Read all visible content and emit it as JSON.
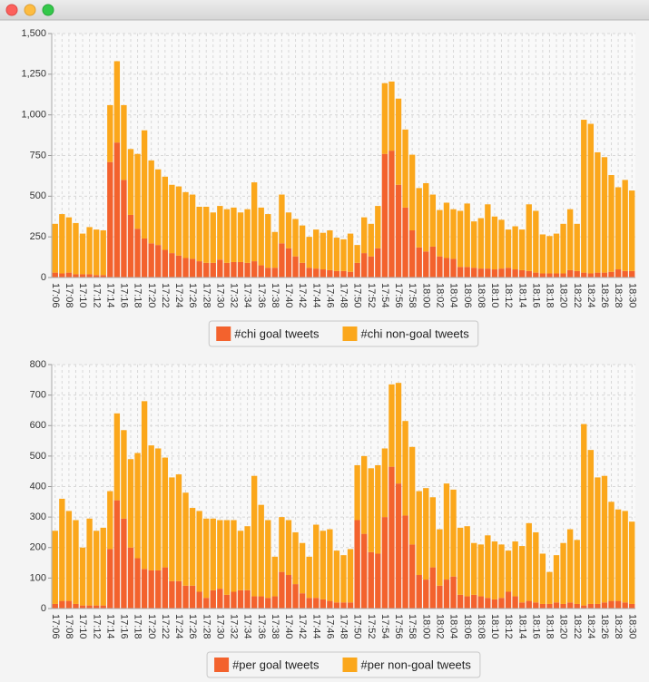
{
  "chart_data": [
    {
      "type": "stacked-bar",
      "categories": [
        "17:06",
        null,
        "17:08",
        null,
        "17:10",
        null,
        "17:12",
        null,
        "17:14",
        null,
        "17:16",
        null,
        "17:18",
        null,
        "17:20",
        null,
        "17:22",
        null,
        "17:24",
        null,
        "17:26",
        null,
        "17:28",
        null,
        "17:30",
        null,
        "17:32",
        null,
        "17:34",
        null,
        "17:36",
        null,
        "17:38",
        null,
        "17:40",
        null,
        "17:42",
        null,
        "17:44",
        null,
        "17:46",
        null,
        "17:48",
        null,
        "17:50",
        null,
        "17:52",
        null,
        "17:54",
        null,
        "17:56",
        null,
        "17:58",
        null,
        "18:00",
        null,
        "18:02",
        null,
        "18:04",
        null,
        "18:06",
        null,
        "18:08",
        null,
        "18:10",
        null,
        "18:12",
        null,
        "18:14",
        null,
        "18:16",
        null,
        "18:18",
        null,
        "18:20",
        null,
        "18:22",
        null,
        "18:24",
        null,
        "18:26",
        null,
        "18:28",
        null,
        "18:30"
      ],
      "series": [
        {
          "name": "#chi goal tweets",
          "color": "#f3622d",
          "values": [
            30,
            25,
            30,
            20,
            20,
            20,
            15,
            15,
            710,
            830,
            600,
            385,
            300,
            240,
            210,
            200,
            170,
            150,
            135,
            120,
            115,
            100,
            90,
            90,
            110,
            90,
            95,
            95,
            90,
            100,
            75,
            60,
            60,
            210,
            180,
            130,
            90,
            60,
            55,
            50,
            45,
            40,
            40,
            35,
            90,
            150,
            130,
            180,
            760,
            780,
            570,
            430,
            290,
            185,
            160,
            190,
            130,
            120,
            115,
            65,
            65,
            60,
            55,
            55,
            50,
            55,
            60,
            50,
            45,
            40,
            30,
            25,
            25,
            25,
            25,
            45,
            40,
            30,
            25,
            30,
            30,
            35,
            50,
            40,
            40
          ]
        },
        {
          "name": "#chi non-goal tweets",
          "color": "#fba71b",
          "values": [
            300,
            365,
            340,
            315,
            250,
            290,
            280,
            275,
            350,
            500,
            460,
            405,
            460,
            665,
            510,
            465,
            450,
            420,
            425,
            405,
            395,
            335,
            345,
            310,
            330,
            330,
            335,
            305,
            330,
            485,
            355,
            330,
            220,
            300,
            220,
            230,
            230,
            190,
            240,
            225,
            245,
            205,
            195,
            235,
            110,
            220,
            200,
            260,
            435,
            425,
            530,
            480,
            465,
            365,
            420,
            320,
            285,
            340,
            305,
            345,
            390,
            285,
            310,
            395,
            325,
            300,
            235,
            265,
            250,
            410,
            380,
            240,
            230,
            245,
            305,
            375,
            290,
            940,
            920,
            740,
            710,
            595,
            505,
            560,
            495
          ]
        }
      ],
      "ylim": [
        0,
        1500
      ],
      "yticks": [
        0,
        250,
        500,
        750,
        {
          "value": 1000,
          "label": "1,000"
        },
        {
          "value": 1250,
          "label": "1,250"
        },
        {
          "value": 1500,
          "label": "1,500"
        }
      ],
      "grid": true,
      "legend": "bottom"
    },
    {
      "type": "stacked-bar",
      "categories": [
        "17:06",
        null,
        "17:08",
        null,
        "17:10",
        null,
        "17:12",
        null,
        "17:14",
        null,
        "17:16",
        null,
        "17:18",
        null,
        "17:20",
        null,
        "17:22",
        null,
        "17:24",
        null,
        "17:26",
        null,
        "17:28",
        null,
        "17:30",
        null,
        "17:32",
        null,
        "17:34",
        null,
        "17:36",
        null,
        "17:38",
        null,
        "17:40",
        null,
        "17:42",
        null,
        "17:44",
        null,
        "17:46",
        null,
        "17:48",
        null,
        "17:50",
        null,
        "17:52",
        null,
        "17:54",
        null,
        "17:56",
        null,
        "17:58",
        null,
        "18:00",
        null,
        "18:02",
        null,
        "18:04",
        null,
        "18:06",
        null,
        "18:08",
        null,
        "18:10",
        null,
        "18:12",
        null,
        "18:14",
        null,
        "18:16",
        null,
        "18:18",
        null,
        "18:20",
        null,
        "18:22",
        null,
        "18:24",
        null,
        "18:26",
        null,
        "18:28",
        null,
        "18:30"
      ],
      "series": [
        {
          "name": "#per goal tweets",
          "color": "#f3622d",
          "values": [
            15,
            25,
            25,
            15,
            10,
            10,
            10,
            10,
            195,
            355,
            295,
            200,
            165,
            130,
            125,
            125,
            135,
            90,
            90,
            75,
            75,
            55,
            35,
            60,
            65,
            45,
            55,
            60,
            60,
            40,
            40,
            35,
            40,
            120,
            110,
            80,
            50,
            35,
            35,
            30,
            25,
            20,
            20,
            20,
            290,
            245,
            185,
            180,
            300,
            465,
            410,
            305,
            210,
            110,
            95,
            135,
            75,
            95,
            105,
            45,
            40,
            45,
            40,
            35,
            30,
            35,
            55,
            40,
            20,
            25,
            20,
            15,
            15,
            20,
            15,
            20,
            15,
            10,
            15,
            15,
            20,
            25,
            25,
            20,
            15
          ]
        },
        {
          "name": "#per non-goal tweets",
          "color": "#fba71b",
          "values": [
            240,
            335,
            295,
            275,
            190,
            285,
            245,
            255,
            190,
            285,
            290,
            290,
            345,
            550,
            410,
            400,
            360,
            340,
            350,
            305,
            255,
            265,
            260,
            235,
            225,
            245,
            235,
            195,
            210,
            395,
            300,
            255,
            130,
            180,
            180,
            170,
            165,
            135,
            240,
            225,
            235,
            170,
            155,
            175,
            180,
            255,
            275,
            290,
            225,
            270,
            330,
            310,
            320,
            275,
            300,
            230,
            185,
            315,
            285,
            220,
            230,
            170,
            170,
            205,
            190,
            175,
            135,
            180,
            185,
            255,
            230,
            165,
            105,
            155,
            200,
            240,
            210,
            595,
            505,
            415,
            415,
            325,
            300,
            300,
            270
          ]
        }
      ],
      "ylim": [
        0,
        800
      ],
      "yticks": [
        0,
        100,
        200,
        300,
        400,
        500,
        600,
        700,
        800
      ],
      "grid": true,
      "legend": "bottom"
    }
  ]
}
